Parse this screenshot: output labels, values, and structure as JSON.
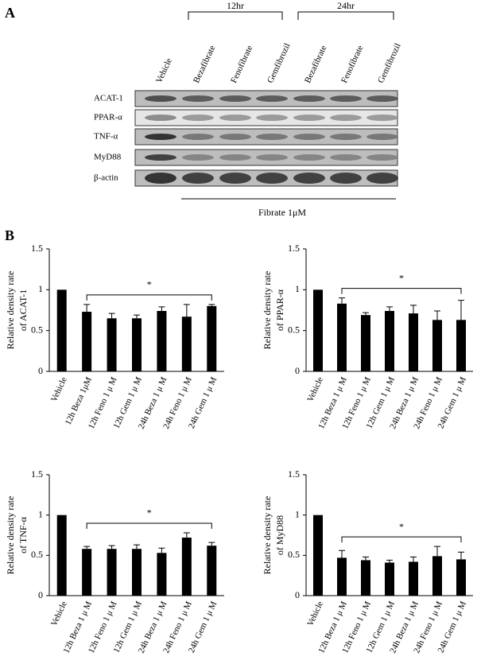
{
  "panel_labels": [
    "A",
    "B"
  ],
  "blot": {
    "groups": [
      "12hr",
      "24hr"
    ],
    "lanes": [
      "Vehicle",
      "Bezafibrate",
      "Fenofibrate",
      "Gemfibrozil",
      "Bezafibrate",
      "Fenofibrate",
      "Gemfibrozil"
    ],
    "rows": [
      "ACAT-1",
      "PPAR-α",
      "TNF-α",
      "MyD88",
      "β-actin"
    ],
    "footer": "Fibrate 1μM"
  },
  "chart_data": [
    {
      "type": "bar",
      "ylabel": [
        "Relative density rate",
        "of ACAT-1"
      ],
      "categories": [
        "Vehicle",
        "12h Beza 1μM",
        "12h Feno 1 μ M",
        "12h Gem 1 μ M",
        "24h Beza 1 μ M",
        "24h Feno 1 μ M",
        "24h Gem 1 μ M"
      ],
      "values": [
        1,
        0.73,
        0.65,
        0.65,
        0.74,
        0.67,
        0.8
      ],
      "errors": [
        null,
        0.09,
        0.06,
        0.04,
        0.05,
        0.15,
        0.02
      ],
      "color": "#000000",
      "ylim": [
        0,
        1.5
      ],
      "yticks": [
        0,
        0.5,
        1,
        1.5
      ],
      "annotation": "*"
    },
    {
      "type": "bar",
      "ylabel": [
        "Relative density rate",
        "of PPAR-α"
      ],
      "categories": [
        "Vehicle",
        "12h Beza 1 μ M",
        "12h Feno 1 μ M",
        "12h Gem 1 μ M",
        "24h Beza 1 μ M",
        "24h Feno 1 μ M",
        "24h Gem 1 μ M"
      ],
      "values": [
        1,
        0.83,
        0.69,
        0.74,
        0.71,
        0.63,
        0.63
      ],
      "errors": [
        null,
        0.07,
        0.03,
        0.05,
        0.1,
        0.11,
        0.24
      ],
      "color": "#000000",
      "ylim": [
        0,
        1.5
      ],
      "yticks": [
        0,
        0.5,
        1,
        1.5
      ],
      "annotation": "*"
    },
    {
      "type": "bar",
      "ylabel": [
        "Relative density rate",
        "of TNF-α"
      ],
      "categories": [
        "Vehicle",
        "12h Beza 1 μ M",
        "12h Feno 1 μ M",
        "12h Gem 1 μ M",
        "24h Beza 1 μ M",
        "24h Feno 1 μ M",
        "24h Gem 1 μ M"
      ],
      "values": [
        1,
        0.58,
        0.58,
        0.58,
        0.53,
        0.72,
        0.62
      ],
      "errors": [
        null,
        0.03,
        0.04,
        0.05,
        0.06,
        0.06,
        0.04
      ],
      "color": "#000000",
      "ylim": [
        0,
        1.5
      ],
      "yticks": [
        0,
        0.5,
        1,
        1.5
      ],
      "annotation": "*"
    },
    {
      "type": "bar",
      "ylabel": [
        "Relative density rate",
        "of MyD88"
      ],
      "categories": [
        "Vehicle",
        "12h Beza 1 μ M",
        "12h Feno 1 μ M",
        "12h Gem 1 μ M",
        "24h Beza 1 μ M",
        "24h Feno 1 μ M",
        "24h Gem 1 μ M"
      ],
      "values": [
        1,
        0.47,
        0.44,
        0.41,
        0.42,
        0.49,
        0.45
      ],
      "errors": [
        null,
        0.09,
        0.04,
        0.03,
        0.06,
        0.12,
        0.09
      ],
      "color": "#000000",
      "ylim": [
        0,
        1.5
      ],
      "yticks": [
        0,
        0.5,
        1,
        1.5
      ],
      "annotation": "*"
    }
  ]
}
